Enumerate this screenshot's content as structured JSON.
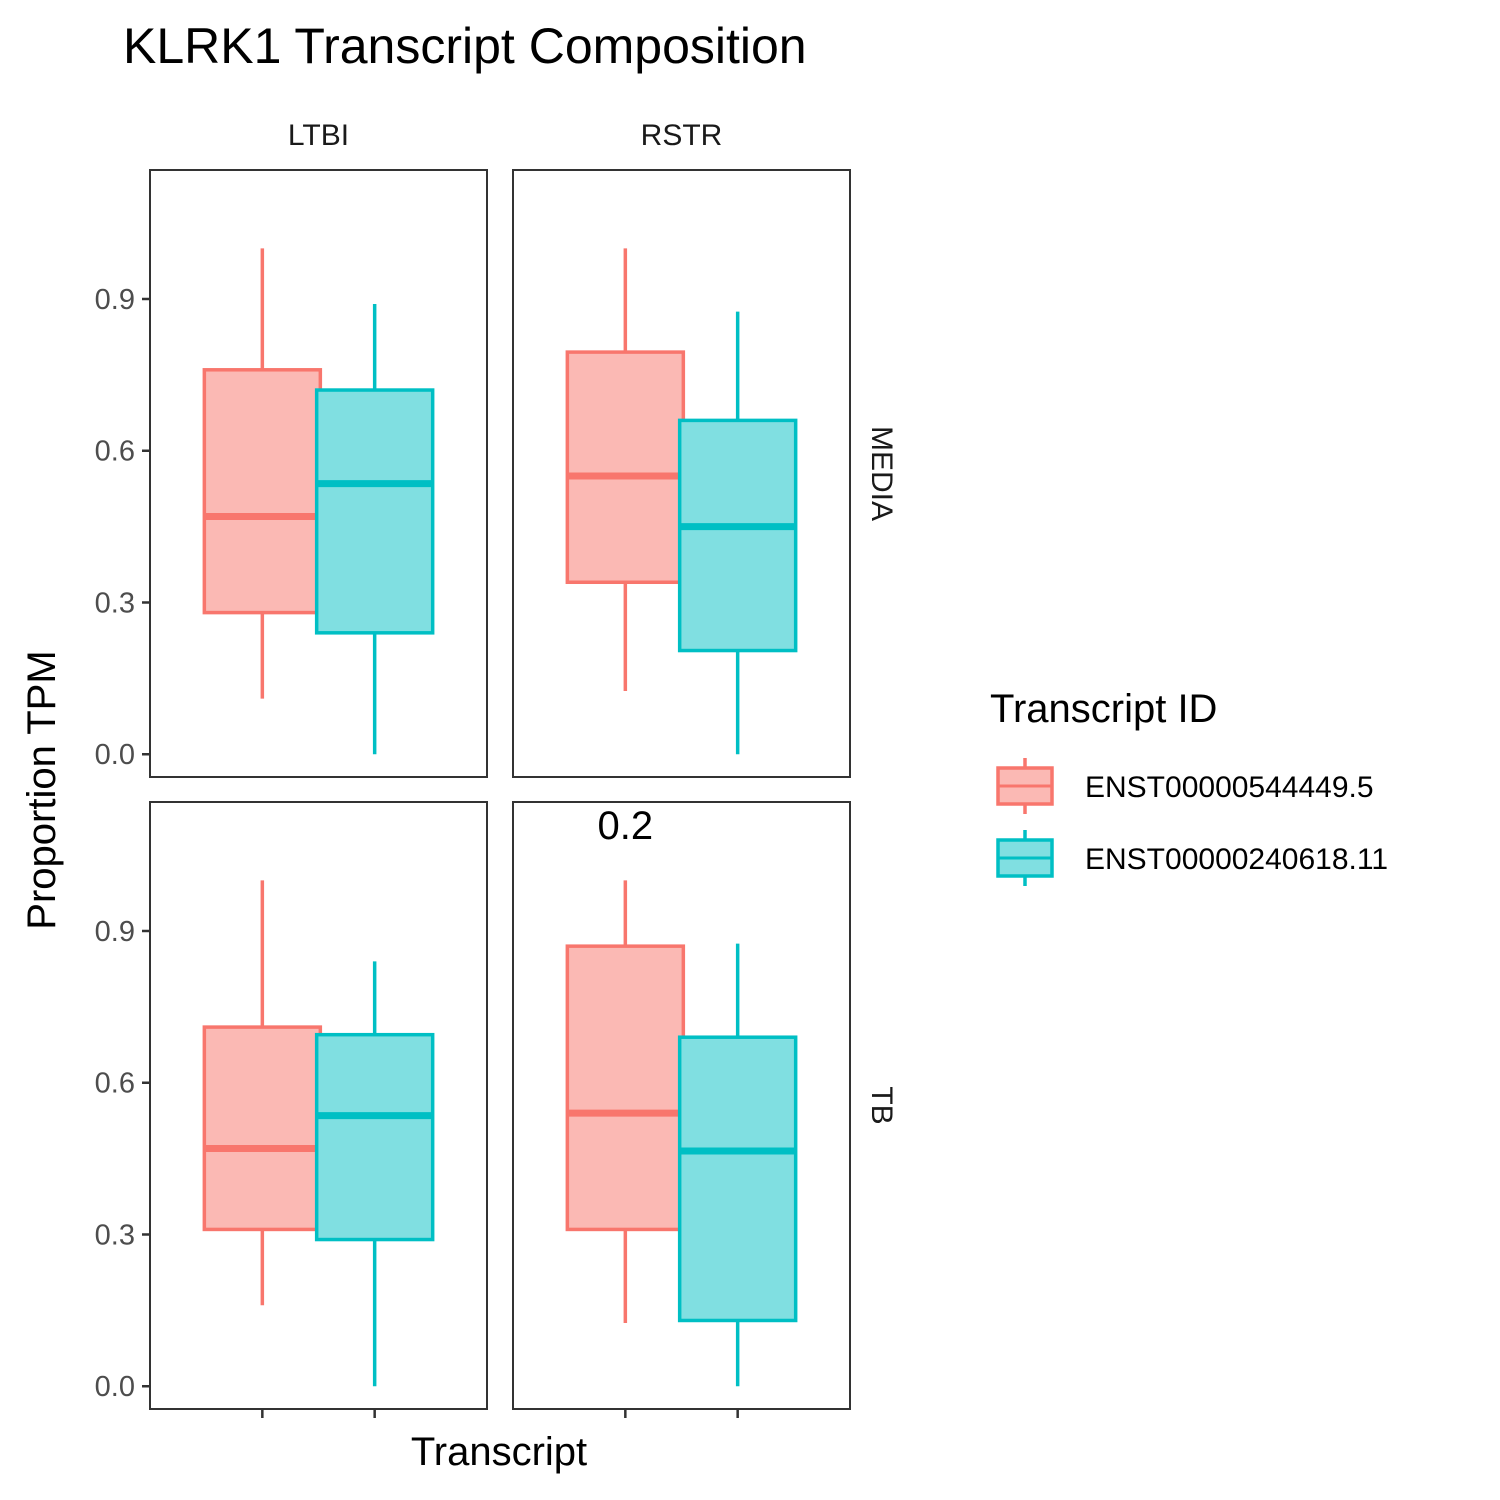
{
  "chart_data": {
    "type": "boxplot",
    "title": "KLRK1 Transcript Composition",
    "xlabel": "Transcript",
    "ylabel": "Proportion TPM",
    "ylim": [
      -0.045,
      1.155
    ],
    "y_ticks": [
      "0.0",
      "0.3",
      "0.6",
      "0.9"
    ],
    "y_tick_values": [
      0.0,
      0.3,
      0.6,
      0.9
    ],
    "facet_columns": [
      "LTBI",
      "RSTR"
    ],
    "facet_rows": [
      "MEDIA",
      "TB"
    ],
    "grid": false,
    "legend": {
      "title": "Transcript ID",
      "position": "right",
      "entries": [
        {
          "label": "ENST00000544449.5",
          "color": "#F8766D",
          "fill": "#FBB9B4"
        },
        {
          "label": "ENST00000240618.11",
          "color": "#00BFC4",
          "fill": "#80DFE1"
        }
      ]
    },
    "series": [
      {
        "name": "ENST00000544449.5",
        "color": "#F8766D",
        "boxes": [
          {
            "col": "LTBI",
            "row": "MEDIA",
            "min": 0.11,
            "q1": 0.28,
            "median": 0.47,
            "q3": 0.76,
            "max": 1.0
          },
          {
            "col": "RSTR",
            "row": "MEDIA",
            "min": 0.125,
            "q1": 0.34,
            "median": 0.55,
            "q3": 0.795,
            "max": 1.0
          },
          {
            "col": "LTBI",
            "row": "TB",
            "min": 0.16,
            "q1": 0.31,
            "median": 0.47,
            "q3": 0.71,
            "max": 1.0
          },
          {
            "col": "RSTR",
            "row": "TB",
            "min": 0.125,
            "q1": 0.31,
            "median": 0.54,
            "q3": 0.87,
            "max": 1.0
          }
        ]
      },
      {
        "name": "ENST00000240618.11",
        "color": "#00BFC4",
        "boxes": [
          {
            "col": "LTBI",
            "row": "MEDIA",
            "min": 0.0,
            "q1": 0.24,
            "median": 0.535,
            "q3": 0.72,
            "max": 0.89
          },
          {
            "col": "RSTR",
            "row": "MEDIA",
            "min": 0.0,
            "q1": 0.205,
            "median": 0.45,
            "q3": 0.66,
            "max": 0.875
          },
          {
            "col": "LTBI",
            "row": "TB",
            "min": 0.0,
            "q1": 0.29,
            "median": 0.535,
            "q3": 0.695,
            "max": 0.84
          },
          {
            "col": "RSTR",
            "row": "TB",
            "min": 0.0,
            "q1": 0.13,
            "median": 0.465,
            "q3": 0.69,
            "max": 0.875
          }
        ]
      }
    ],
    "annotations": [
      {
        "col": "RSTR",
        "row": "TB",
        "text": "0.2",
        "y": 1.11
      }
    ]
  }
}
